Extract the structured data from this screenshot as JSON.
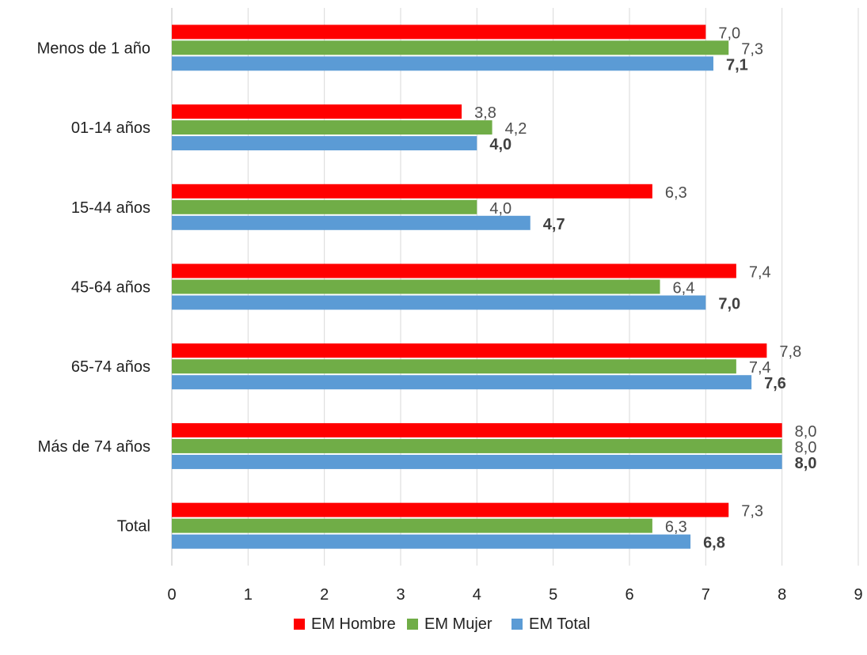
{
  "chart_data": {
    "type": "bar",
    "orientation": "horizontal",
    "categories": [
      "Menos de 1 año",
      "01-14 años",
      "15-44 años",
      "45-64 años",
      "65-74 años",
      "Más de 74 años",
      "Total"
    ],
    "series": [
      {
        "name": "EM Hombre",
        "color": "#ff0000",
        "values": [
          7.0,
          3.8,
          6.3,
          7.4,
          7.8,
          8.0,
          7.3
        ],
        "labels": [
          "7,0",
          "3,8",
          "6,3",
          "7,4",
          "7,8",
          "8,0",
          "7,3"
        ]
      },
      {
        "name": "EM Mujer",
        "color": "#70ad47",
        "values": [
          7.3,
          4.2,
          4.0,
          6.4,
          7.4,
          8.0,
          6.3
        ],
        "labels": [
          "7,3",
          "4,2",
          "4,0",
          "6,4",
          "7,4",
          "8,0",
          "6,3"
        ]
      },
      {
        "name": "EM Total",
        "color": "#5b9bd5",
        "values": [
          7.1,
          4.0,
          4.7,
          7.0,
          7.6,
          8.0,
          6.8
        ],
        "labels": [
          "7,1",
          "4,0",
          "4,7",
          "7,0",
          "7,6",
          "8,0",
          "6,8"
        ],
        "bold_labels": true
      }
    ],
    "x_ticks": [
      "0",
      "1",
      "2",
      "3",
      "4",
      "5",
      "6",
      "7",
      "8",
      "9"
    ],
    "xlim": [
      0,
      9
    ],
    "grid": "vertical",
    "legend_position": "bottom",
    "title": "",
    "xlabel": "",
    "ylabel": ""
  }
}
